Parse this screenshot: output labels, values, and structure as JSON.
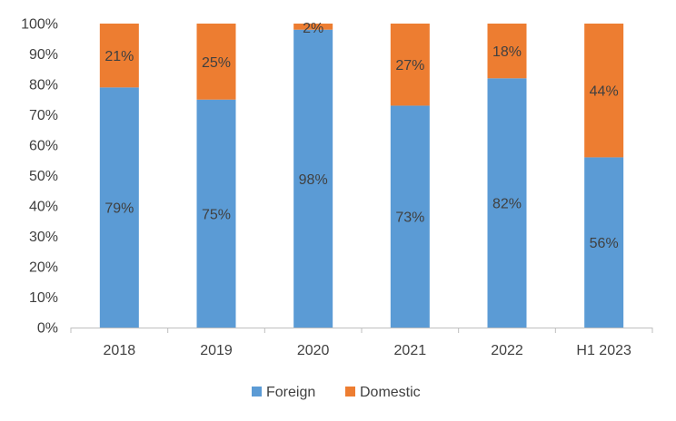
{
  "chart_data": {
    "type": "bar",
    "stacked": true,
    "categories": [
      "2018",
      "2019",
      "2020",
      "2021",
      "2022",
      "H1 2023"
    ],
    "series": [
      {
        "name": "Foreign",
        "values": [
          79,
          75,
          98,
          73,
          82,
          56
        ],
        "labels": [
          "79%",
          "75%",
          "98%",
          "73%",
          "82%",
          "56%"
        ],
        "color": "#5b9bd5"
      },
      {
        "name": "Domestic",
        "values": [
          21,
          25,
          2,
          27,
          18,
          44
        ],
        "labels": [
          "21%",
          "25%",
          "2%",
          "27%",
          "18%",
          "44%"
        ],
        "color": "#ed7d31"
      }
    ],
    "ylim": [
      0,
      100
    ],
    "yticks": [
      0,
      10,
      20,
      30,
      40,
      50,
      60,
      70,
      80,
      90,
      100
    ],
    "ytick_labels": [
      "0%",
      "10%",
      "20%",
      "30%",
      "40%",
      "50%",
      "60%",
      "70%",
      "80%",
      "90%",
      "100%"
    ],
    "grid": false,
    "legend_position": "bottom"
  }
}
